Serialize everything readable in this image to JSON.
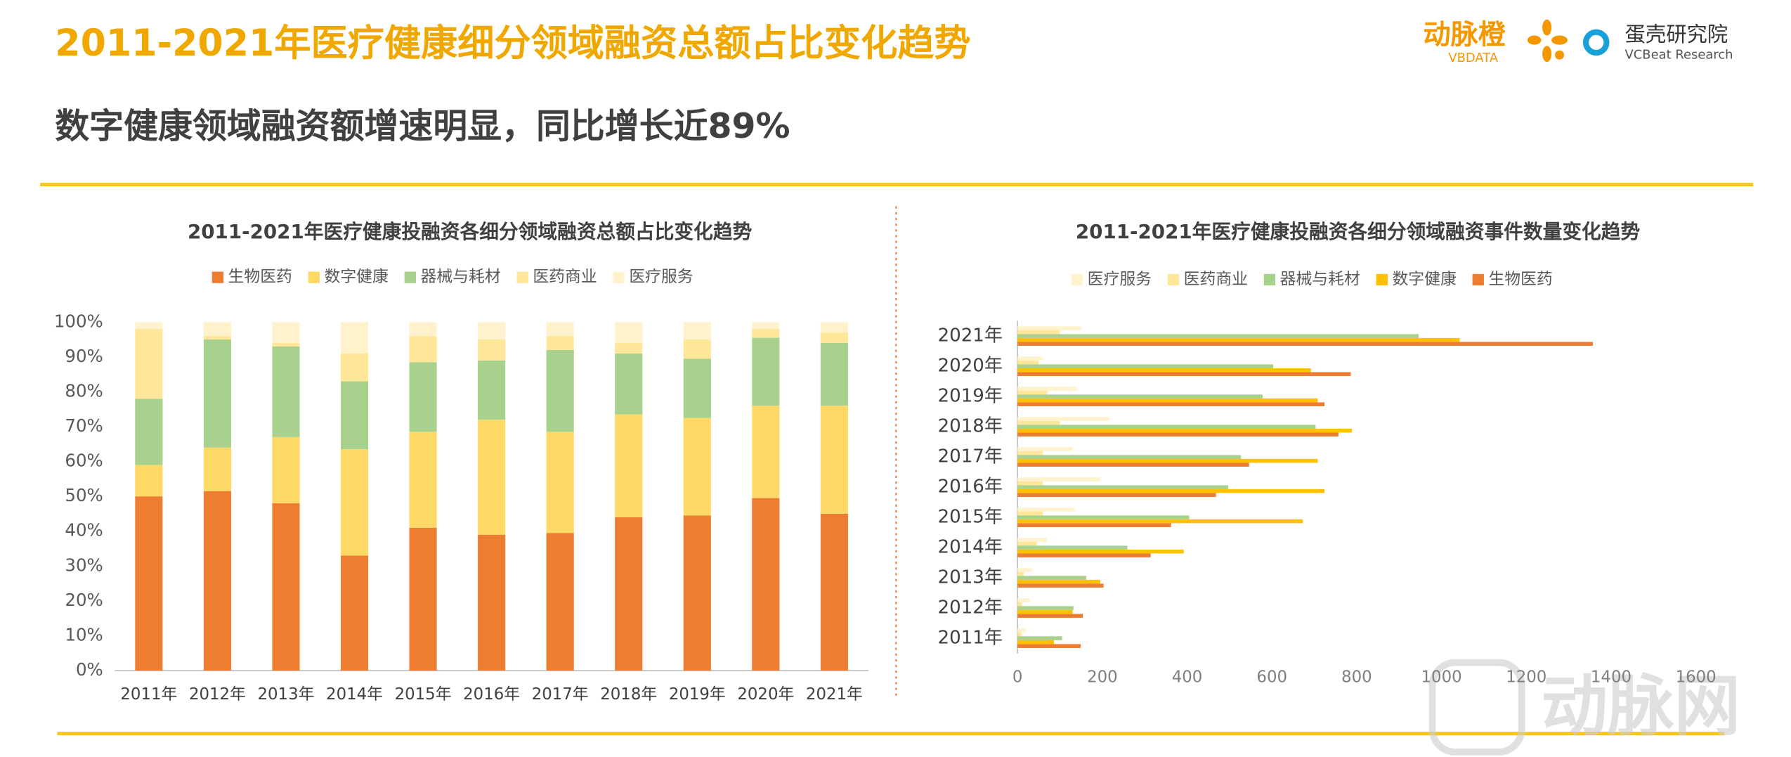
{
  "header": {
    "title": "2011-2021年医疗健康细分领域融资总额占比变化趋势",
    "subtitle": "数字健康领域融资额增速明显，同比增长近89%",
    "logo_left": "动脉橙",
    "logo_left_sub": "VBDATA",
    "logo_right": "蛋壳研究院",
    "logo_right_sub": "VCBeat Research",
    "watermark": "动脉网"
  },
  "chart_data": [
    {
      "type": "stacked_bar",
      "title": "2011-2021年医疗健康投融资各细分领域融资总额占比变化趋势",
      "categories": [
        "2011年",
        "2012年",
        "2013年",
        "2014年",
        "2015年",
        "2016年",
        "2017年",
        "2018年",
        "2019年",
        "2020年",
        "2021年"
      ],
      "series": [
        {
          "name": "生物医药",
          "color": "#ed7d31",
          "values": [
            50,
            51.5,
            48,
            33,
            41,
            39,
            39.5,
            44,
            44.5,
            49.5,
            45
          ]
        },
        {
          "name": "数字健康",
          "color": "#ffd966",
          "values": [
            9,
            12.5,
            19,
            30.5,
            27.5,
            33,
            29,
            29.5,
            28,
            26.5,
            31
          ]
        },
        {
          "name": "器械与耗材",
          "color": "#a9d18e",
          "values": [
            19,
            31,
            26,
            19.5,
            20,
            17,
            23.5,
            17.5,
            17,
            19.5,
            18
          ]
        },
        {
          "name": "医药商业",
          "color": "#ffe699",
          "values": [
            20,
            1,
            1,
            8,
            7.5,
            6,
            4,
            3,
            5.5,
            2.5,
            3
          ]
        },
        {
          "name": "医疗服务",
          "color": "#fff2cc",
          "values": [
            2,
            4,
            6,
            9,
            4,
            5,
            4,
            6,
            5,
            2,
            3
          ]
        }
      ],
      "ylim": [
        0,
        100
      ],
      "yticks": [
        {
          "value": 0,
          "label": "0%"
        },
        {
          "value": 10,
          "label": "10%"
        },
        {
          "value": 20,
          "label": "20%"
        },
        {
          "value": 30,
          "label": "30%"
        },
        {
          "value": 40,
          "label": "40%"
        },
        {
          "value": 50,
          "label": "50%"
        },
        {
          "value": 60,
          "label": "60%"
        },
        {
          "value": 70,
          "label": "70%"
        },
        {
          "value": 80,
          "label": "80%"
        },
        {
          "value": 90,
          "label": "90%"
        },
        {
          "value": 100,
          "label": "100%"
        }
      ],
      "grid": false
    },
    {
      "type": "grouped_barh",
      "title": "2011-2021年医疗健康投融资各细分领域融资事件数量变化趋势",
      "categories": [
        "2011年",
        "2012年",
        "2013年",
        "2014年",
        "2015年",
        "2016年",
        "2017年",
        "2018年",
        "2019年",
        "2020年",
        "2021年"
      ],
      "series": [
        {
          "name": "医疗服务",
          "color": "#fff2cc",
          "values": [
            20,
            30,
            35,
            70,
            135,
            195,
            130,
            216,
            140,
            60,
            150
          ]
        },
        {
          "name": "医药商业",
          "color": "#ffe699",
          "values": [
            10,
            10,
            15,
            45,
            60,
            60,
            60,
            100,
            70,
            50,
            100
          ]
        },
        {
          "name": "器械与耗材",
          "color": "#a9d18e",
          "values": [
            105,
            132,
            162,
            259,
            405,
            497,
            527,
            703,
            578,
            603,
            946
          ]
        },
        {
          "name": "数字健康",
          "color": "#ffc000",
          "values": [
            86,
            130,
            195,
            392,
            673,
            724,
            708,
            789,
            708,
            692,
            1043
          ]
        },
        {
          "name": "生物医药",
          "color": "#ed7d31",
          "values": [
            149,
            154,
            203,
            314,
            362,
            468,
            546,
            757,
            724,
            786,
            1357
          ]
        }
      ],
      "xlim": [
        0,
        1600
      ],
      "xticks": [
        0,
        200,
        400,
        600,
        800,
        1000,
        1200,
        1400,
        1600
      ],
      "grid": false
    }
  ]
}
